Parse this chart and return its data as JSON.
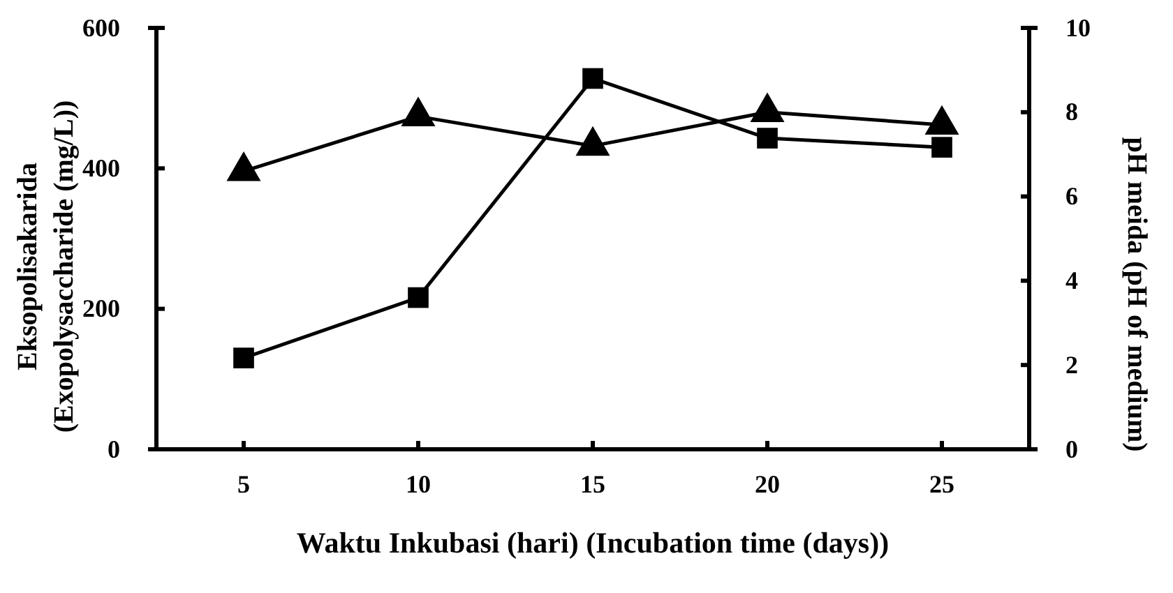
{
  "chart_data": {
    "type": "line",
    "xlabel": "Waktu Inkubasi (hari) (Incubation time (days))",
    "ylabel": "Eksopolisakarida (Exopolysaccharide (mg/L))",
    "y2label": "pH meida (pH of  medium)",
    "categories": [
      "5",
      "10",
      "15",
      "20",
      "25"
    ],
    "series": [
      {
        "values": [
          130,
          216,
          528,
          443,
          430
        ],
        "color": "#000000",
        "marker": "square",
        "axis": "y"
      },
      {
        "values": [
          6.6,
          7.9,
          7.2,
          8.0,
          7.7
        ],
        "color": "#000000",
        "marker": "triangle",
        "axis": "y2"
      }
    ],
    "ylim": [
      0,
      600
    ],
    "yticks": [
      0,
      200,
      400,
      600
    ],
    "y2lim": [
      0,
      10
    ],
    "y2ticks": [
      0,
      2,
      4,
      6,
      8,
      10
    ],
    "grid": false,
    "line_style": "solid"
  }
}
